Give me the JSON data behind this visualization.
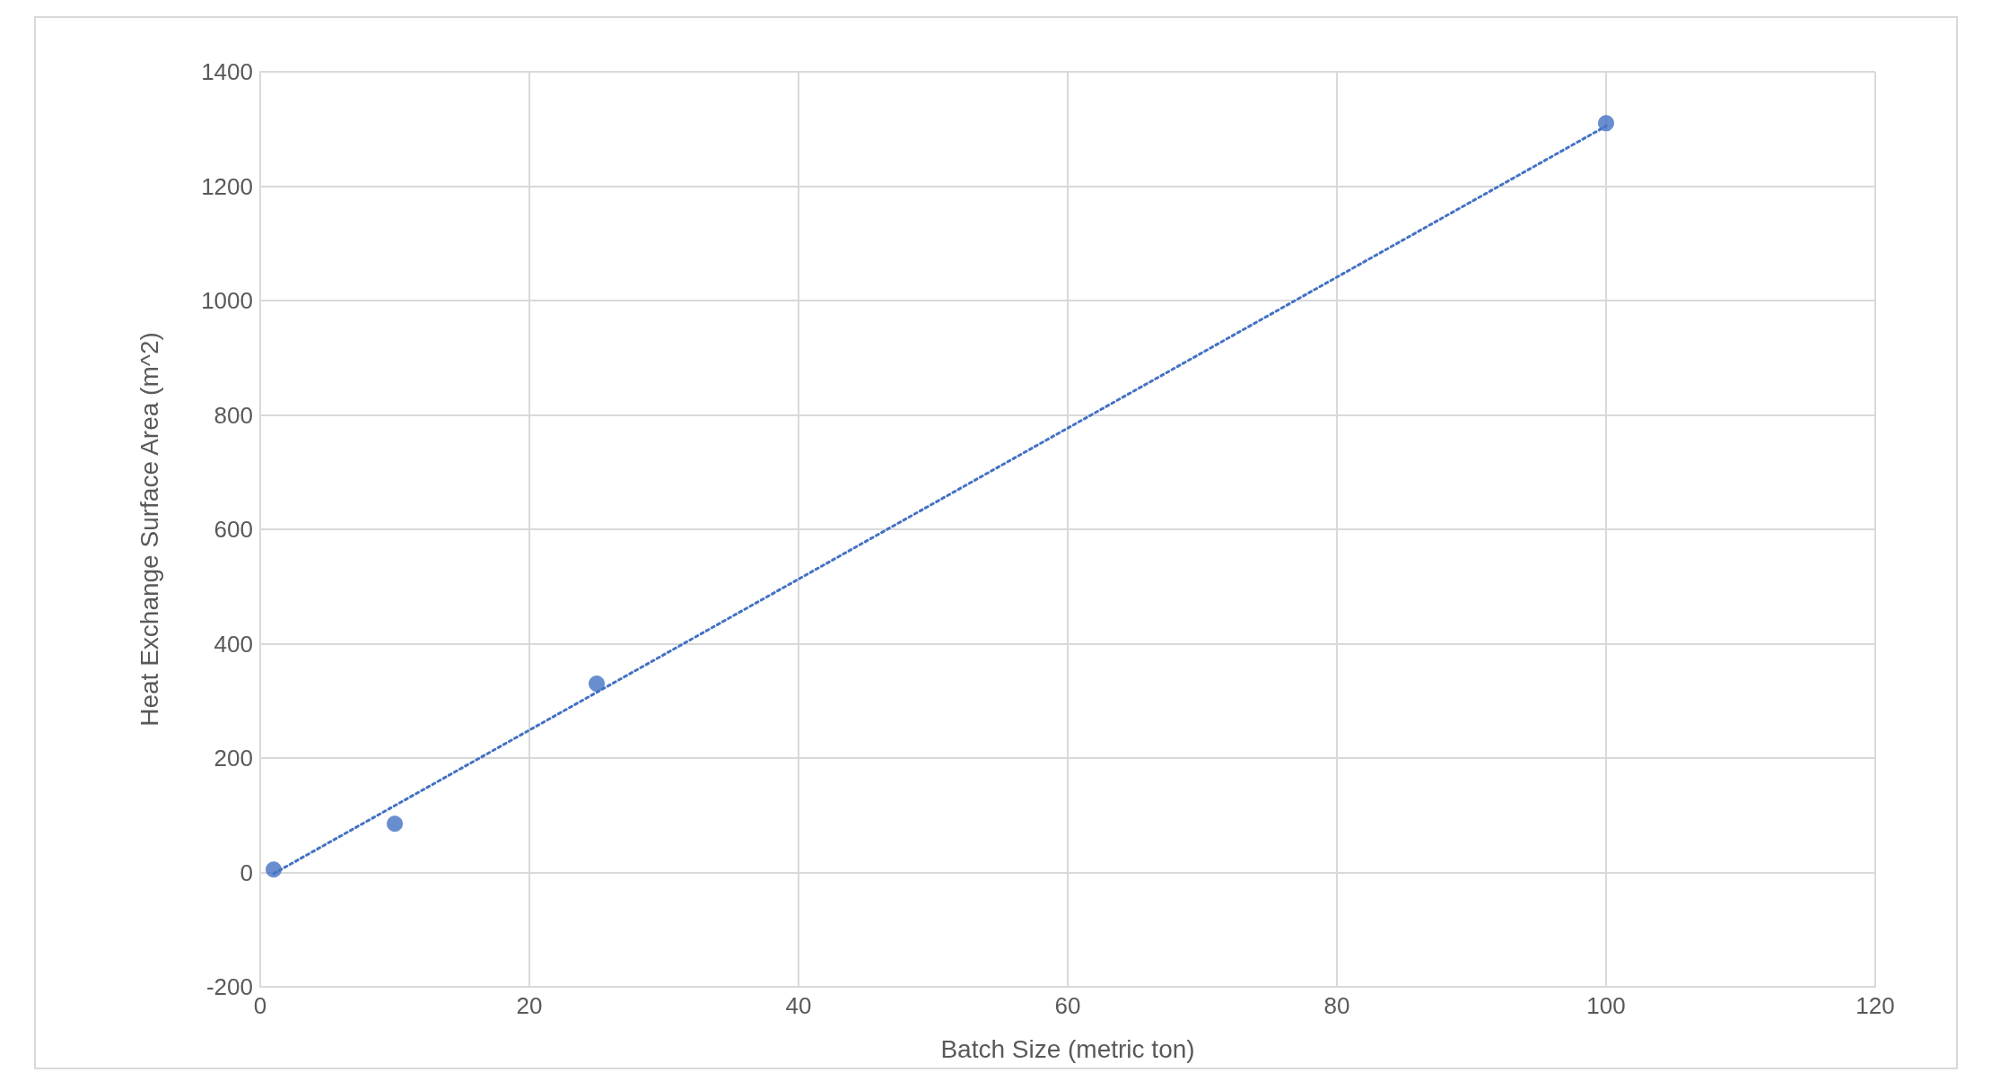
{
  "chart_data": {
    "type": "scatter",
    "xlabel": "Batch Size (metric ton)",
    "ylabel": "Heat Exchange Surface Area (m^2)",
    "series": [
      {
        "color": "#4472c4",
        "x": [
          1,
          10,
          25,
          100
        ],
        "values": [
          5,
          85,
          330,
          1310
        ],
        "marker": "circle"
      },
      {
        "type": "line",
        "color": "#4472c4",
        "x": [
          1,
          100
        ],
        "values": [
          -2,
          1305
        ],
        "line_style": "dotted",
        "marker": "none"
      }
    ],
    "xlim": [
      0,
      120
    ],
    "xticks": [
      0,
      20,
      40,
      60,
      80,
      100,
      120
    ],
    "ylim": [
      -200,
      1400
    ],
    "yticks": [
      -200,
      0,
      200,
      400,
      600,
      800,
      1000,
      1200,
      1400
    ],
    "grid": true
  }
}
